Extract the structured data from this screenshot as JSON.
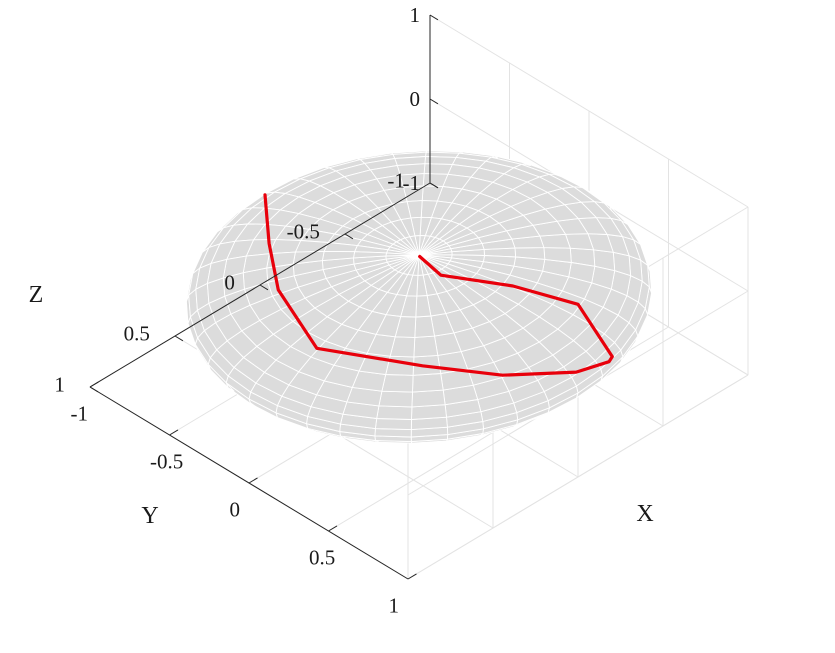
{
  "chart_data": {
    "type": "surface3d",
    "title": "",
    "xlabel": "X",
    "ylabel": "Y",
    "zlabel": "Z",
    "xlim": [
      -1,
      1
    ],
    "ylim": [
      -1,
      1
    ],
    "zlim": [
      -1,
      1
    ],
    "x_ticks": [
      {
        "value": -1,
        "label": "-1"
      },
      {
        "value": -0.5,
        "label": "-0.5"
      },
      {
        "value": 0,
        "label": "0"
      },
      {
        "value": 0.5,
        "label": "0.5"
      },
      {
        "value": 1,
        "label": "1"
      }
    ],
    "y_ticks": [
      {
        "value": -1,
        "label": "-1"
      },
      {
        "value": -0.5,
        "label": "-0.5"
      },
      {
        "value": 0,
        "label": "0"
      },
      {
        "value": 0.5,
        "label": "0.5"
      },
      {
        "value": 1,
        "label": "1"
      }
    ],
    "z_ticks": [
      {
        "value": -1,
        "label": "-1"
      },
      {
        "value": 0,
        "label": "0"
      },
      {
        "value": 1,
        "label": "1"
      }
    ],
    "grid": true,
    "surface": {
      "shape": "oblate spheroid",
      "semi_axes": [
        1,
        1,
        0.5
      ],
      "face_color": "#dcdcdc",
      "edge_color": "#ffffff"
    },
    "series": [
      {
        "color": "#e8000b",
        "points": [
          [
            -0.99,
            -0.02,
            0.06
          ],
          [
            -0.75,
            0.18,
            0.0
          ],
          [
            -0.5,
            0.36,
            -0.05
          ],
          [
            -0.14,
            0.47,
            -0.2
          ],
          [
            0.3,
            0.26,
            -0.16
          ],
          [
            0.6,
            0.07,
            -0.16
          ],
          [
            0.85,
            -0.13,
            -0.08
          ],
          [
            0.96,
            -0.22,
            0.06
          ],
          [
            0.97,
            -0.23,
            0.12
          ],
          [
            0.69,
            -0.29,
            0.35
          ],
          [
            0.43,
            -0.15,
            0.44
          ],
          [
            0.17,
            0.03,
            0.49
          ],
          [
            0.01,
            0.005,
            0.5
          ]
        ]
      }
    ]
  }
}
